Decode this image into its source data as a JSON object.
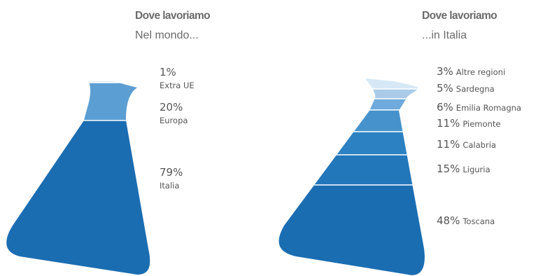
{
  "chart_data": [
    {
      "type": "flask",
      "title": "Dove lavoriamo",
      "subtitle": "Nel mondo...",
      "categories": [
        "Extra UE",
        "Europa",
        "Italia"
      ],
      "values": [
        1,
        20,
        79
      ],
      "labels": [
        "1%",
        "20%",
        "79%"
      ],
      "colors": [
        "#dce9f5",
        "#5b9ed3",
        "#1b6db2"
      ]
    },
    {
      "type": "flask",
      "title": "Dove lavoriamo",
      "subtitle": "...in Italia",
      "categories": [
        "Altre regioni",
        "Sardegna",
        "Emilia Romagna",
        "Piemonte",
        "Calabria",
        "Liguria",
        "Toscana"
      ],
      "values": [
        3,
        5,
        6,
        11,
        11,
        15,
        48
      ],
      "labels": [
        "3%",
        "5%",
        "6%",
        "11%",
        "11%",
        "15%",
        "48%"
      ],
      "colors": [
        "#d6e8f6",
        "#a9cbe8",
        "#6eaadb",
        "#4592cd",
        "#2c81c2",
        "#2276ba",
        "#1b6db2"
      ]
    }
  ]
}
